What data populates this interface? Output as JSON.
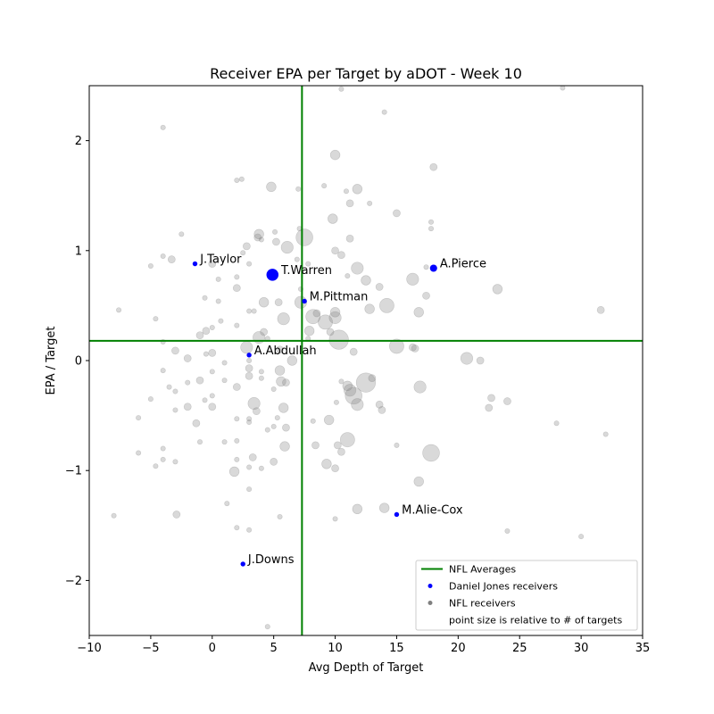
{
  "chart_data": {
    "type": "scatter",
    "title": "Receiver EPA per Target by aDOT - Week 10",
    "xlabel": "Avg Depth of Target",
    "ylabel": "EPA / Target",
    "xlim": [
      -10,
      35
    ],
    "ylim": [
      -2.5,
      2.5
    ],
    "xticks": [
      -10,
      -5,
      0,
      5,
      10,
      15,
      20,
      25,
      30,
      35
    ],
    "yticks": [
      -2,
      -1,
      0,
      1,
      2
    ],
    "averages": {
      "x": 7.3,
      "y": 0.18,
      "color": "#008000"
    },
    "colors": {
      "highlight": "#0000ff",
      "league": "#808080"
    },
    "highlight_series": {
      "name": "Daniel Jones receivers",
      "points": [
        {
          "label": "J.Taylor",
          "x": -1.4,
          "y": 0.88,
          "targets": 1
        },
        {
          "label": "T.Warren",
          "x": 4.9,
          "y": 0.78,
          "targets": 4
        },
        {
          "label": "A.Pierce",
          "x": 18.0,
          "y": 0.84,
          "targets": 2
        },
        {
          "label": "M.Pittman",
          "x": 7.5,
          "y": 0.54,
          "targets": 1
        },
        {
          "label": "A.Abdullah",
          "x": 3.0,
          "y": 0.05,
          "targets": 1
        },
        {
          "label": "M.Alie-Cox",
          "x": 15.0,
          "y": -1.4,
          "targets": 1
        },
        {
          "label": "J.Downs",
          "x": 2.5,
          "y": -1.85,
          "targets": 1
        }
      ]
    },
    "league_series": {
      "name": "NFL receivers",
      "points": [
        [
          -4,
          2.12,
          1
        ],
        [
          -7.6,
          0.46,
          1
        ],
        [
          -5,
          0.86,
          1
        ],
        [
          -4,
          0.95,
          1
        ],
        [
          -3.3,
          0.92,
          2
        ],
        [
          -2.5,
          1.15,
          1
        ],
        [
          -4.6,
          0.38,
          1
        ],
        [
          -4,
          0.17,
          1
        ],
        [
          -3,
          0.09,
          2
        ],
        [
          -4,
          -0.09,
          1
        ],
        [
          -2,
          0.02,
          2
        ],
        [
          -3.5,
          -0.24,
          1
        ],
        [
          -2,
          -0.2,
          1
        ],
        [
          -1,
          -0.18,
          2
        ],
        [
          -3,
          -0.28,
          1
        ],
        [
          -2,
          -0.42,
          2
        ],
        [
          -3,
          -0.45,
          1
        ],
        [
          -1.3,
          -0.57,
          2
        ],
        [
          -5,
          -0.35,
          1
        ],
        [
          -6,
          -0.52,
          1
        ],
        [
          -6,
          -0.84,
          1
        ],
        [
          -4,
          -0.8,
          1
        ],
        [
          -4,
          -0.9,
          1
        ],
        [
          -3,
          -0.92,
          1
        ],
        [
          -4.6,
          -0.96,
          1
        ],
        [
          -1,
          -0.74,
          1
        ],
        [
          1,
          -0.74,
          1
        ],
        [
          -8,
          -1.41,
          1
        ],
        [
          -2.9,
          -1.4,
          2
        ],
        [
          1.2,
          -1.3,
          1
        ],
        [
          2,
          -1.52,
          1
        ],
        [
          3,
          -1.54,
          1
        ],
        [
          4.5,
          -2.42,
          1
        ],
        [
          0.5,
          0.54,
          1
        ],
        [
          0,
          0.88,
          2
        ],
        [
          0.5,
          0.74,
          1
        ],
        [
          -0.6,
          0.57,
          1
        ],
        [
          0.7,
          0.36,
          1
        ],
        [
          -0.5,
          0.27,
          2
        ],
        [
          0,
          0.3,
          1
        ],
        [
          -1,
          0.23,
          2
        ],
        [
          -0.5,
          0.06,
          1
        ],
        [
          0,
          0.07,
          2
        ],
        [
          1,
          -0.02,
          1
        ],
        [
          0,
          -0.1,
          1
        ],
        [
          1,
          -0.18,
          1
        ],
        [
          2,
          -0.24,
          2
        ],
        [
          0,
          -0.32,
          1
        ],
        [
          0,
          -0.42,
          2
        ],
        [
          -0.6,
          -0.36,
          1
        ],
        [
          2,
          -0.53,
          1
        ],
        [
          2,
          -0.73,
          1
        ],
        [
          2,
          -0.9,
          1
        ],
        [
          1.8,
          -1.01,
          3
        ],
        [
          3,
          -0.97,
          1
        ],
        [
          3,
          -1.17,
          1
        ],
        [
          2,
          1.64,
          1
        ],
        [
          2.4,
          1.65,
          1
        ],
        [
          2.5,
          0.98,
          1
        ],
        [
          2.8,
          1.04,
          2
        ],
        [
          3,
          0.88,
          1
        ],
        [
          2,
          0.76,
          1
        ],
        [
          2,
          0.66,
          2
        ],
        [
          3,
          0.45,
          1
        ],
        [
          3.4,
          0.45,
          1
        ],
        [
          2,
          0.32,
          1
        ],
        [
          2.8,
          0.12,
          4
        ],
        [
          3.8,
          0.21,
          4
        ],
        [
          4.2,
          0.26,
          2
        ],
        [
          3,
          0.0,
          1
        ],
        [
          3,
          -0.07,
          2
        ],
        [
          4,
          -0.1,
          1
        ],
        [
          3,
          -0.14,
          2
        ],
        [
          4,
          -0.16,
          1
        ],
        [
          3.4,
          -0.39,
          4
        ],
        [
          3.6,
          -0.46,
          2
        ],
        [
          3,
          -0.53,
          1
        ],
        [
          3,
          -0.56,
          1
        ],
        [
          4.5,
          -0.63,
          1
        ],
        [
          5,
          -0.6,
          1
        ],
        [
          3.3,
          -0.88,
          2
        ],
        [
          4,
          -0.98,
          1
        ],
        [
          5,
          -0.92,
          2
        ],
        [
          3.7,
          1.12,
          2
        ],
        [
          3.8,
          1.15,
          3
        ],
        [
          4,
          1.1,
          1
        ],
        [
          4.8,
          1.58,
          3
        ],
        [
          5.1,
          1.17,
          1
        ],
        [
          5.2,
          1.08,
          2
        ],
        [
          6.1,
          1.03,
          4
        ],
        [
          4.2,
          0.53,
          3
        ],
        [
          5.4,
          0.53,
          2
        ],
        [
          5.8,
          0.38,
          4
        ],
        [
          4.5,
          0.2,
          1
        ],
        [
          5.5,
          0.1,
          2
        ],
        [
          5.5,
          -0.09,
          3
        ],
        [
          6.5,
          0.0,
          3
        ],
        [
          5.6,
          -0.19,
          3
        ],
        [
          6,
          -0.2,
          2
        ],
        [
          5,
          -0.26,
          1
        ],
        [
          5.8,
          -0.43,
          3
        ],
        [
          5.3,
          -0.52,
          1
        ],
        [
          6,
          -0.61,
          2
        ],
        [
          5.9,
          -0.78,
          3
        ],
        [
          5.5,
          -1.42,
          1
        ],
        [
          7,
          1.56,
          1
        ],
        [
          7.1,
          1.2,
          1
        ],
        [
          7.5,
          1.12,
          6
        ],
        [
          6.9,
          0.92,
          1
        ],
        [
          7.8,
          0.88,
          1
        ],
        [
          7.2,
          0.65,
          1
        ],
        [
          7.2,
          0.53,
          4
        ],
        [
          8.2,
          0.4,
          5
        ],
        [
          8.5,
          0.43,
          2
        ],
        [
          7.9,
          0.27,
          3
        ],
        [
          7.8,
          0.2,
          1
        ],
        [
          8.2,
          -0.55,
          1
        ],
        [
          8.4,
          -0.77,
          2
        ],
        [
          9.1,
          1.59,
          1
        ],
        [
          10,
          1.87,
          3
        ],
        [
          10.5,
          2.47,
          1
        ],
        [
          10.9,
          1.54,
          1
        ],
        [
          11.2,
          1.43,
          2
        ],
        [
          11.2,
          1.11,
          2
        ],
        [
          11.8,
          1.56,
          3
        ],
        [
          12.8,
          1.43,
          1
        ],
        [
          14,
          2.26,
          1
        ],
        [
          15,
          1.34,
          2
        ],
        [
          9.8,
          1.29,
          3
        ],
        [
          10,
          1.0,
          2
        ],
        [
          10.5,
          0.96,
          2
        ],
        [
          11,
          0.77,
          1
        ],
        [
          11.8,
          0.84,
          4
        ],
        [
          12.5,
          0.73,
          3
        ],
        [
          13.6,
          0.67,
          2
        ],
        [
          14.2,
          0.5,
          5
        ],
        [
          12.8,
          0.47,
          3
        ],
        [
          9.2,
          0.35,
          5
        ],
        [
          10,
          0.39,
          4
        ],
        [
          10,
          0.44,
          3
        ],
        [
          9.6,
          0.26,
          2
        ],
        [
          10.3,
          0.19,
          7
        ],
        [
          11.5,
          0.08,
          2
        ],
        [
          15,
          0.13,
          5
        ],
        [
          16.3,
          0.12,
          2
        ],
        [
          16.5,
          0.11,
          2
        ],
        [
          10.5,
          -0.19,
          1
        ],
        [
          11,
          -0.23,
          3
        ],
        [
          11.2,
          -0.27,
          4
        ],
        [
          11.5,
          -0.32,
          6
        ],
        [
          11.8,
          -0.4,
          4
        ],
        [
          12.5,
          -0.2,
          7
        ],
        [
          13,
          -0.16,
          2
        ],
        [
          13.6,
          -0.4,
          2
        ],
        [
          13.8,
          -0.45,
          2
        ],
        [
          9.5,
          -0.54,
          3
        ],
        [
          10.1,
          -0.38,
          1
        ],
        [
          10.2,
          -0.77,
          2
        ],
        [
          10.5,
          -0.83,
          2
        ],
        [
          11,
          -0.72,
          5
        ],
        [
          9.3,
          -0.94,
          3
        ],
        [
          10,
          -0.98,
          2
        ],
        [
          10,
          -1.44,
          1
        ],
        [
          11.8,
          -1.35,
          3
        ],
        [
          14,
          -1.34,
          3
        ],
        [
          15,
          -0.77,
          1
        ],
        [
          16.9,
          -0.24,
          4
        ],
        [
          17.8,
          -0.84,
          6
        ],
        [
          16.8,
          -1.1,
          3
        ],
        [
          18,
          1.76,
          2
        ],
        [
          17.8,
          1.26,
          1
        ],
        [
          17.8,
          1.2,
          1
        ],
        [
          16.3,
          0.74,
          4
        ],
        [
          17.4,
          0.85,
          1
        ],
        [
          17.4,
          0.59,
          2
        ],
        [
          16.8,
          0.44,
          3
        ],
        [
          20.7,
          0.02,
          4
        ],
        [
          21.8,
          0.0,
          2
        ],
        [
          22.7,
          -0.34,
          2
        ],
        [
          22.5,
          -0.43,
          2
        ],
        [
          24,
          -0.37,
          2
        ],
        [
          23.2,
          0.65,
          3
        ],
        [
          28.5,
          2.48,
          1
        ],
        [
          31.6,
          0.46,
          2
        ],
        [
          28,
          -0.57,
          1
        ],
        [
          32,
          -0.67,
          1
        ],
        [
          24,
          -1.55,
          1
        ],
        [
          30,
          -1.6,
          1
        ]
      ]
    },
    "legend": {
      "position": "lower-right",
      "entries": [
        "NFL Averages",
        "Daniel Jones receivers",
        "NFL receivers",
        "point size is relative to # of targets"
      ]
    }
  }
}
